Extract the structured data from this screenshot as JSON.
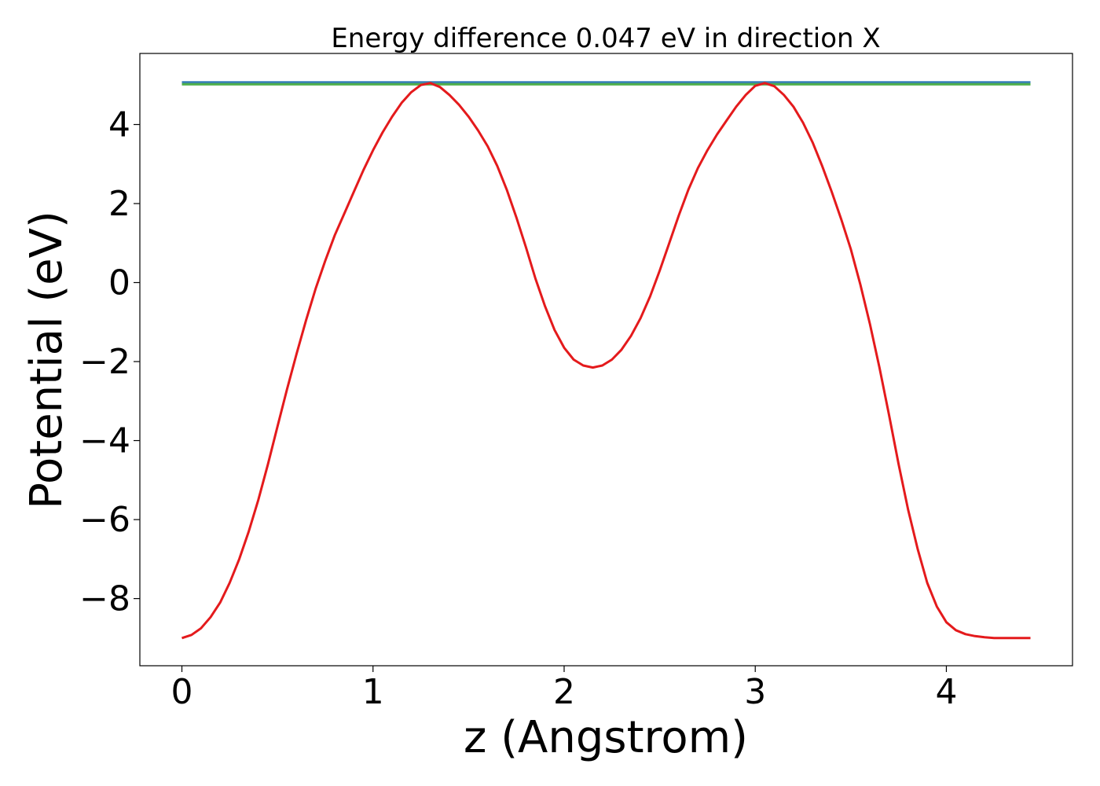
{
  "chart_data": {
    "type": "line",
    "title": "Energy difference 0.047 eV in direction X",
    "xlabel": "z (Angstrom)",
    "ylabel": "Potential (eV)",
    "xlim": [
      -0.22,
      4.66
    ],
    "ylim": [
      -9.7,
      5.8
    ],
    "xticks": [
      0,
      1,
      2,
      3,
      4
    ],
    "yticks": [
      -8,
      -6,
      -4,
      -2,
      0,
      2,
      4
    ],
    "grid": false,
    "series": [
      {
        "color": "#e41a1c",
        "x": [
          0,
          0.05,
          0.1,
          0.15,
          0.2,
          0.25,
          0.3,
          0.35,
          0.4,
          0.45,
          0.5,
          0.55,
          0.6,
          0.65,
          0.7,
          0.75,
          0.8,
          0.85,
          0.9,
          0.95,
          1.0,
          1.05,
          1.1,
          1.15,
          1.2,
          1.25,
          1.3,
          1.35,
          1.4,
          1.45,
          1.5,
          1.55,
          1.6,
          1.65,
          1.7,
          1.75,
          1.8,
          1.85,
          1.9,
          1.95,
          2.0,
          2.05,
          2.1,
          2.15,
          2.2,
          2.25,
          2.3,
          2.35,
          2.4,
          2.45,
          2.5,
          2.55,
          2.6,
          2.65,
          2.7,
          2.75,
          2.8,
          2.85,
          2.9,
          2.95,
          3.0,
          3.05,
          3.1,
          3.15,
          3.2,
          3.25,
          3.3,
          3.35,
          3.4,
          3.45,
          3.5,
          3.55,
          3.6,
          3.65,
          3.7,
          3.75,
          3.8,
          3.85,
          3.9,
          3.95,
          4.0,
          4.05,
          4.1,
          4.15,
          4.2,
          4.25,
          4.3,
          4.35,
          4.4,
          4.44
        ],
        "y": [
          -9.0,
          -8.92,
          -8.75,
          -8.47,
          -8.1,
          -7.6,
          -7.0,
          -6.3,
          -5.5,
          -4.6,
          -3.65,
          -2.7,
          -1.8,
          -0.95,
          -0.15,
          0.55,
          1.2,
          1.75,
          2.3,
          2.85,
          3.35,
          3.8,
          4.2,
          4.55,
          4.82,
          5.0,
          5.05,
          4.95,
          4.75,
          4.5,
          4.2,
          3.85,
          3.45,
          2.95,
          2.35,
          1.65,
          0.9,
          0.1,
          -0.6,
          -1.2,
          -1.65,
          -1.95,
          -2.1,
          -2.15,
          -2.1,
          -1.95,
          -1.7,
          -1.35,
          -0.9,
          -0.35,
          0.3,
          1.0,
          1.7,
          2.35,
          2.9,
          3.35,
          3.75,
          4.1,
          4.45,
          4.75,
          4.98,
          5.05,
          4.97,
          4.75,
          4.45,
          4.05,
          3.55,
          2.95,
          2.3,
          1.6,
          0.85,
          -0.05,
          -1.05,
          -2.15,
          -3.35,
          -4.6,
          -5.75,
          -6.75,
          -7.6,
          -8.2,
          -8.6,
          -8.8,
          -8.9,
          -8.95,
          -8.98,
          -9.0,
          -9.0,
          -9.0,
          -9.0,
          -9.0
        ]
      },
      {
        "color": "#377eb8",
        "x": [
          0,
          4.44
        ],
        "y": [
          5.07,
          5.07
        ]
      },
      {
        "color": "#4daf4a",
        "x": [
          0,
          4.44
        ],
        "y": [
          5.02,
          5.02
        ]
      }
    ]
  }
}
